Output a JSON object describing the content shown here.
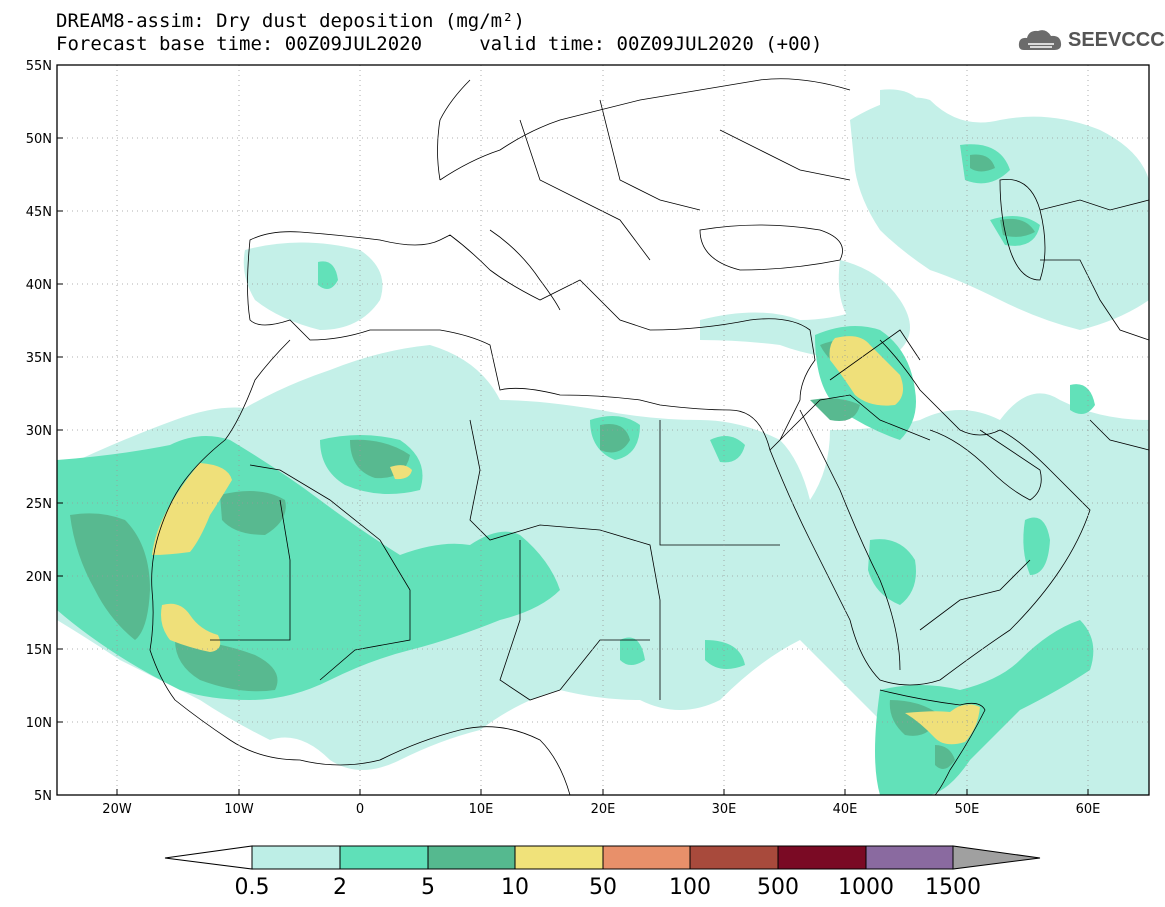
{
  "title": {
    "line1": "DREAM8-assim: Dry dust deposition (mg/m²)",
    "line2": "Forecast base time: 00Z09JUL2020     valid time: 00Z09JUL2020 (+00)"
  },
  "logo": {
    "text": "SEEVCCC",
    "icon": "cloud-icon"
  },
  "map": {
    "lon_range": [
      -25,
      65
    ],
    "lat_range": [
      5,
      55
    ],
    "lat_ticks": [
      "55N",
      "50N",
      "45N",
      "40N",
      "35N",
      "30N",
      "25N",
      "20N",
      "15N",
      "10N",
      "5N"
    ],
    "lon_ticks": [
      "20W",
      "10W",
      "0",
      "10E",
      "20E",
      "30E",
      "40E",
      "50E",
      "60E"
    ]
  },
  "colorbar": {
    "labels": [
      "0.5",
      "2",
      "5",
      "10",
      "50",
      "100",
      "500",
      "1000",
      "1500"
    ],
    "colors": [
      "#bdeee6",
      "#5fe0b8",
      "#55b98f",
      "#f0e27a",
      "#e8906a",
      "#a84a3c",
      "#7a0a24",
      "#8a6aa0"
    ],
    "over_color": "#a0a0a0",
    "under_color": "#ffffff"
  },
  "field_colors": {
    "lvl1": "#c4f0e8",
    "lvl2": "#62e1b9",
    "lvl3": "#58b990",
    "lvl4": "#efe07a"
  }
}
